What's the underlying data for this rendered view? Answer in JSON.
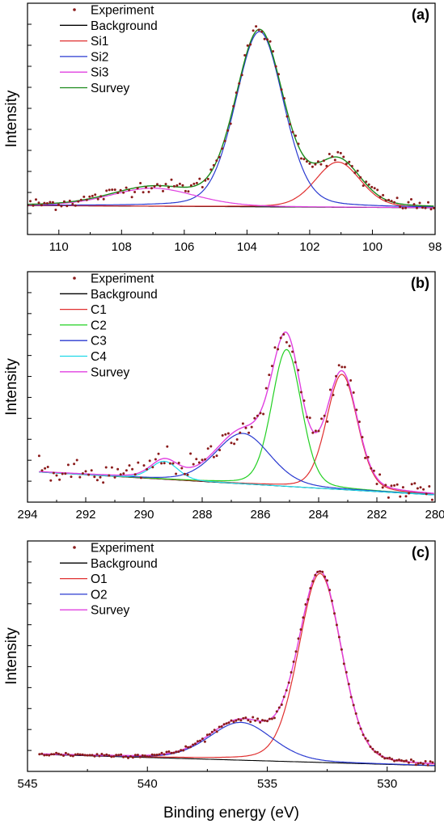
{
  "chart_data": [
    {
      "type": "line",
      "panel_label": "(a)",
      "ylabel": "Intensity",
      "xlabel": "",
      "xlim": [
        111,
        98
      ],
      "x_reversed": true,
      "xticks": [
        110,
        108,
        106,
        104,
        102,
        100,
        98
      ],
      "legend_placement": "top-left",
      "legend": [
        "Experiment",
        "Background",
        "Si1",
        "Si2",
        "Si3",
        "Survey"
      ],
      "colors": {
        "Experiment": "#8b1c1c",
        "Background": "#000000",
        "Si1": "#e03030",
        "Si2": "#2a3ad0",
        "Si3": "#e040e0",
        "Survey": "#1a8a1a"
      },
      "ylim": [
        -0.16,
        1.12
      ],
      "background": {
        "x": [
          111,
          98
        ],
        "y": [
          0.0,
          -0.012
        ]
      },
      "peaks": [
        {
          "name": "Si1",
          "center": 101.1,
          "height": 0.25,
          "fwhm": 1.7
        },
        {
          "name": "Si2",
          "center": 103.6,
          "height": 0.97,
          "fwhm": 1.8
        },
        {
          "name": "Si3",
          "center": 107.0,
          "height": 0.1,
          "fwhm": 3.2
        }
      ],
      "noise": 0.018,
      "experiment_step": 0.09
    },
    {
      "type": "line",
      "panel_label": "(b)",
      "ylabel": "Intensity",
      "xlabel": "",
      "xlim": [
        294,
        280
      ],
      "x_reversed": true,
      "xticks": [
        294,
        292,
        290,
        288,
        286,
        284,
        282,
        280
      ],
      "legend_placement": "top-left",
      "legend": [
        "Experiment",
        "Background",
        "C1",
        "C2",
        "C3",
        "C4",
        "Survey"
      ],
      "colors": {
        "Experiment": "#8b1c1c",
        "Background": "#000000",
        "C1": "#e03030",
        "C2": "#22d022",
        "C3": "#2a3ad0",
        "C4": "#20d8e8",
        "Survey": "#e040e0"
      },
      "ylim": [
        -0.15,
        1.13
      ],
      "background": {
        "x": [
          293.6,
          280
        ],
        "y": [
          0.017,
          -0.11
        ]
      },
      "peaks": [
        {
          "name": "C1",
          "center": 283.2,
          "height": 0.64,
          "fwhm": 1.25
        },
        {
          "name": "C2",
          "center": 285.1,
          "height": 0.76,
          "fwhm": 1.2
        },
        {
          "name": "C3",
          "center": 286.6,
          "height": 0.28,
          "fwhm": 2.2
        },
        {
          "name": "C4",
          "center": 289.3,
          "height": 0.1,
          "fwhm": 1.1
        }
      ],
      "noise": 0.035,
      "experiment_step": 0.1
    },
    {
      "type": "line",
      "panel_label": "(c)",
      "ylabel": "Intensity",
      "xlabel": "Binding energy (eV)",
      "xlim": [
        545,
        528
      ],
      "x_reversed": true,
      "xticks": [
        545,
        540,
        535,
        530
      ],
      "legend_placement": "top-left",
      "legend": [
        "Experiment",
        "Background",
        "O1",
        "O2",
        "Survey"
      ],
      "colors": {
        "Experiment": "#8b1c1c",
        "Background": "#000000",
        "O1": "#e03030",
        "O2": "#2a3ad0",
        "Survey": "#e040e0"
      },
      "ylim": [
        -0.08,
        1.14
      ],
      "background": {
        "x": [
          544.5,
          528
        ],
        "y": [
          0.01,
          -0.05
        ]
      },
      "peaks": [
        {
          "name": "O1",
          "center": 532.8,
          "height": 1.0,
          "fwhm": 2.1
        },
        {
          "name": "O2",
          "center": 536.1,
          "height": 0.2,
          "fwhm": 3.1
        }
      ],
      "noise": 0.006,
      "experiment_step": 0.1
    }
  ]
}
